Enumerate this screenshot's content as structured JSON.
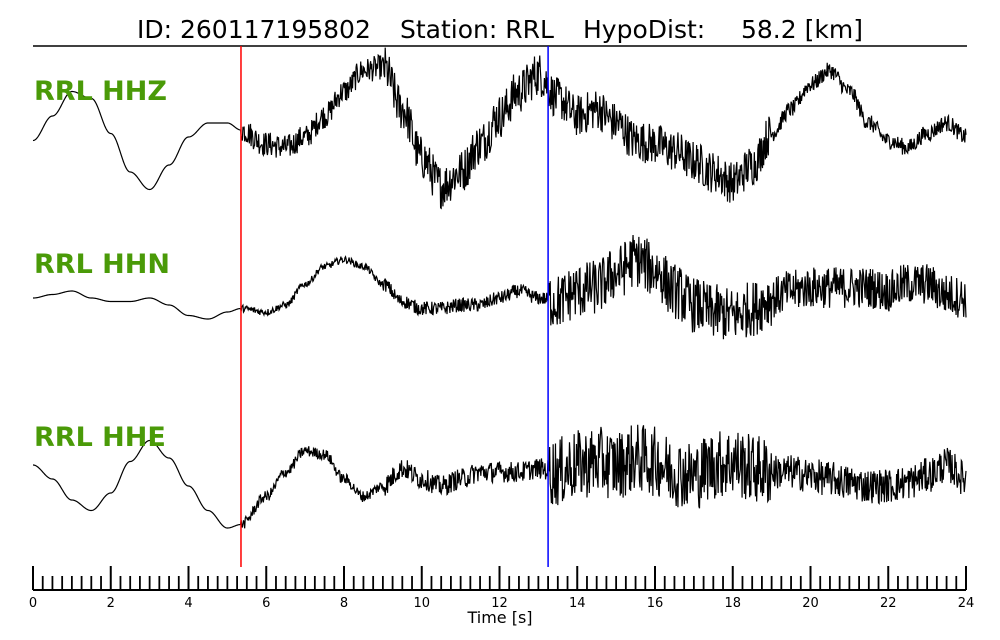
{
  "title": {
    "id_text": "ID: 260117195802",
    "station_text": "Station: RRL",
    "hypodist_text": "HypoDist:",
    "hypodist_value": "58.2 [km]"
  },
  "colors": {
    "label": "#4a9a08",
    "trace": "#000000",
    "p_pick": "#ff0000",
    "s_pick": "#0000ff",
    "axis": "#000000"
  },
  "chart_data": {
    "type": "line",
    "xlabel": "Time [s]",
    "ylabel": "",
    "xlim": [
      0,
      24
    ],
    "x_ticks": [
      0,
      2,
      4,
      6,
      8,
      10,
      12,
      14,
      16,
      18,
      20,
      22,
      24
    ],
    "x_minor_tick_step": 0.25,
    "grid": false,
    "picks": [
      {
        "phase": "P",
        "time": 5.35,
        "color": "#ff0000"
      },
      {
        "phase": "S",
        "time": 13.25,
        "color": "#0000ff"
      }
    ],
    "series": [
      {
        "name": "RRL HHZ",
        "t": [
          0,
          0.5,
          1,
          1.5,
          2,
          2.5,
          3,
          3.5,
          4,
          4.5,
          5,
          5.35,
          6,
          6.5,
          7,
          7.5,
          8,
          8.5,
          9,
          9.5,
          10,
          10.5,
          11,
          11.5,
          12,
          12.5,
          13,
          13.5,
          14,
          14.5,
          15,
          15.5,
          16,
          16.5,
          17,
          17.5,
          18,
          18.5,
          19,
          19.5,
          20,
          20.5,
          21,
          21.5,
          22,
          22.5,
          23,
          23.5,
          24
        ],
        "values": [
          -0.15,
          0.2,
          0.55,
          0.45,
          -0.05,
          -0.6,
          -0.85,
          -0.5,
          -0.1,
          0.1,
          0.1,
          0.0,
          -0.2,
          -0.25,
          -0.1,
          0.2,
          0.55,
          0.85,
          0.9,
          0.3,
          -0.4,
          -0.8,
          -0.6,
          -0.2,
          0.2,
          0.55,
          0.8,
          0.45,
          0.2,
          0.3,
          0.1,
          -0.15,
          -0.2,
          -0.3,
          -0.45,
          -0.6,
          -0.75,
          -0.5,
          -0.05,
          0.3,
          0.65,
          0.85,
          0.55,
          0.1,
          -0.15,
          -0.25,
          -0.05,
          0.1,
          -0.1
        ],
        "noise_onset": 5.35,
        "noise_amplitude": [
          0.18,
          0.32,
          0.3,
          0.12
        ]
      },
      {
        "name": "RRL HHN",
        "t": [
          0,
          0.5,
          1,
          1.5,
          2,
          2.5,
          3,
          3.5,
          4,
          4.5,
          5,
          5.35,
          6,
          6.5,
          7,
          7.5,
          8,
          8.5,
          9,
          9.5,
          10,
          10.5,
          11,
          11.5,
          12,
          12.5,
          13,
          13.5,
          14,
          14.5,
          15,
          15.5,
          16,
          16.5,
          17,
          17.5,
          18,
          18.5,
          19,
          19.5,
          20,
          20.5,
          21,
          21.5,
          22,
          22.5,
          23,
          23.5,
          24
        ],
        "values": [
          0.0,
          0.05,
          0.1,
          0.0,
          -0.05,
          -0.05,
          0.0,
          -0.1,
          -0.25,
          -0.3,
          -0.2,
          -0.15,
          -0.2,
          -0.1,
          0.2,
          0.45,
          0.55,
          0.45,
          0.2,
          -0.05,
          -0.15,
          -0.15,
          -0.1,
          -0.1,
          0.0,
          0.1,
          0.0,
          -0.05,
          0.1,
          0.15,
          0.35,
          0.55,
          0.4,
          0.1,
          -0.1,
          -0.2,
          -0.25,
          -0.15,
          0.0,
          0.1,
          0.15,
          0.15,
          0.15,
          0.15,
          0.1,
          0.2,
          0.2,
          0.05,
          0.0
        ],
        "noise_onset": 5.35,
        "noise_amplitude": [
          0.05,
          0.1,
          0.4,
          0.3
        ]
      },
      {
        "name": "RRL HHE",
        "t": [
          0,
          0.5,
          1,
          1.5,
          2,
          2.5,
          3,
          3.5,
          4,
          4.5,
          5,
          5.35,
          6,
          6.5,
          7,
          7.5,
          8,
          8.5,
          9,
          9.5,
          10,
          10.5,
          11,
          11.5,
          12,
          12.5,
          13,
          13.5,
          14,
          14.5,
          15,
          15.5,
          16,
          16.5,
          17,
          17.5,
          18,
          18.5,
          19,
          19.5,
          20,
          20.5,
          21,
          21.5,
          22,
          22.5,
          23,
          23.5,
          24
        ],
        "values": [
          0.1,
          -0.1,
          -0.4,
          -0.55,
          -0.3,
          0.15,
          0.45,
          0.2,
          -0.2,
          -0.55,
          -0.8,
          -0.75,
          -0.35,
          0.0,
          0.3,
          0.25,
          -0.1,
          -0.35,
          -0.2,
          0.05,
          -0.1,
          -0.2,
          -0.1,
          0.0,
          0.0,
          0.0,
          0.05,
          0.0,
          0.1,
          0.15,
          0.1,
          0.2,
          0.15,
          0.0,
          -0.05,
          0.1,
          0.15,
          0.05,
          0.0,
          0.0,
          -0.05,
          -0.1,
          -0.15,
          -0.2,
          -0.2,
          -0.15,
          -0.05,
          0.1,
          -0.1
        ],
        "noise_onset": 5.35,
        "noise_amplitude": [
          0.08,
          0.15,
          0.5,
          0.25
        ]
      }
    ]
  }
}
